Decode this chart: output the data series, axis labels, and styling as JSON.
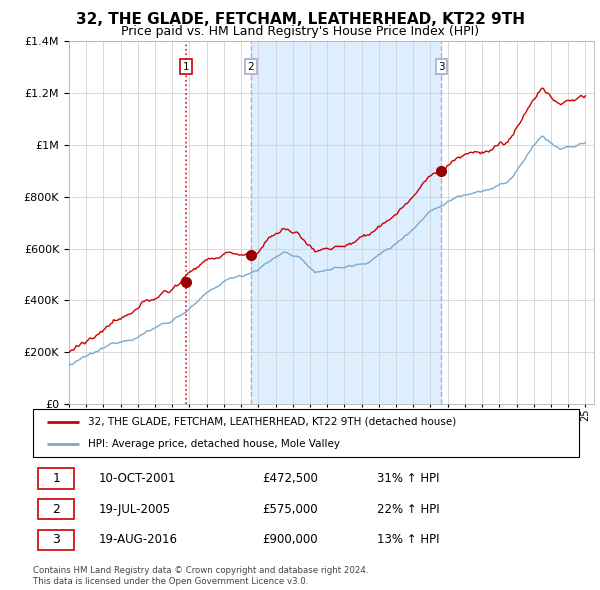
{
  "title": "32, THE GLADE, FETCHAM, LEATHERHEAD, KT22 9TH",
  "subtitle": "Price paid vs. HM Land Registry's House Price Index (HPI)",
  "ylim": [
    0,
    1400000
  ],
  "yticks": [
    0,
    200000,
    400000,
    600000,
    800000,
    1000000,
    1200000,
    1400000
  ],
  "ytick_labels": [
    "£0",
    "£200K",
    "£400K",
    "£600K",
    "£800K",
    "£1M",
    "£1.2M",
    "£1.4M"
  ],
  "sale_dates": [
    2001.78,
    2005.55,
    2016.64
  ],
  "sale_prices": [
    472500,
    575000,
    900000
  ],
  "sale_color": "#cc0000",
  "hpi_color": "#7aaad0",
  "vline1_color": "#cc0000",
  "vline23_color": "#7aaad0",
  "shade_color": "#ddeeff",
  "legend_sale_label": "32, THE GLADE, FETCHAM, LEATHERHEAD, KT22 9TH (detached house)",
  "legend_hpi_label": "HPI: Average price, detached house, Mole Valley",
  "table_entries": [
    {
      "num": "1",
      "date": "10-OCT-2001",
      "price": "£472,500",
      "hpi": "31% ↑ HPI"
    },
    {
      "num": "2",
      "date": "19-JUL-2005",
      "price": "£575,000",
      "hpi": "22% ↑ HPI"
    },
    {
      "num": "3",
      "date": "19-AUG-2016",
      "price": "£900,000",
      "hpi": "13% ↑ HPI"
    }
  ],
  "footnote1": "Contains HM Land Registry data © Crown copyright and database right 2024.",
  "footnote2": "This data is licensed under the Open Government Licence v3.0.",
  "grid_color": "#cccccc",
  "title_fontsize": 11,
  "subtitle_fontsize": 9
}
